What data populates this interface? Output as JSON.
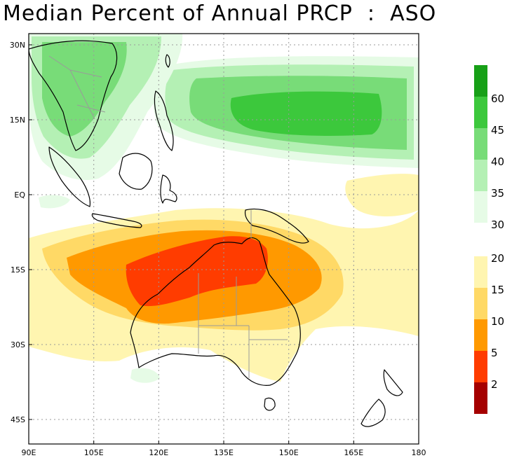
{
  "title": "Median Percent of Annual PRCP  :  ASO",
  "lon_ticks": [
    "90E",
    "105E",
    "120E",
    "135E",
    "150E",
    "165E",
    "180"
  ],
  "lat_ticks": [
    "30N",
    "15N",
    "EQ",
    "15S",
    "30S",
    "45S"
  ],
  "wet_legend": {
    "colors": [
      "#e6fbe6",
      "#b4f0b4",
      "#78dc78",
      "#3cc83c",
      "#17a017"
    ],
    "labels": [
      "30",
      "35",
      "40",
      "45",
      "60"
    ]
  },
  "dry_legend": {
    "colors": [
      "#a50000",
      "#ff3c00",
      "#ff9900",
      "#ffd966",
      "#fff5b0"
    ],
    "labels": [
      "2",
      "5",
      "10",
      "15",
      "20"
    ]
  },
  "colors": {
    "land_outline": "#000000",
    "border": "#9a9a9a",
    "grid": "#9a9a9a"
  }
}
